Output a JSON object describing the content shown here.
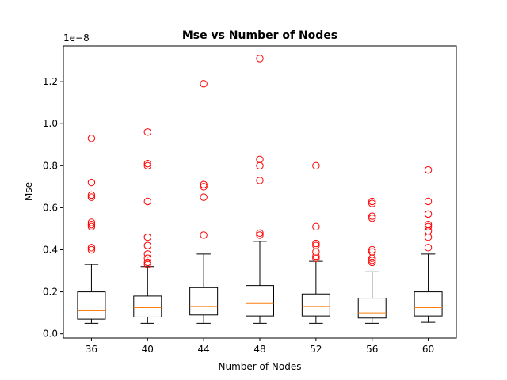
{
  "chart_data": {
    "type": "box",
    "title": "Mse vs Number of Nodes",
    "xlabel": "Number of Nodes",
    "ylabel": "Mse",
    "y_scale_label": "1e−8",
    "ylim": [
      -0.02,
      1.37
    ],
    "yticks": [
      0.0,
      0.2,
      0.4,
      0.6,
      0.8,
      1.0,
      1.2
    ],
    "ytick_labels": [
      "0.0",
      "0.2",
      "0.4",
      "0.6",
      "0.8",
      "1.0",
      "1.2"
    ],
    "grid": false,
    "colors": {
      "box": "#000000",
      "median": "#ff7f0e",
      "outlier": "#ff0000"
    },
    "categories": [
      "36",
      "40",
      "44",
      "48",
      "52",
      "56",
      "60"
    ],
    "boxes": [
      {
        "label": "36",
        "whisker_low": 0.05,
        "q1": 0.07,
        "median": 0.11,
        "q3": 0.2,
        "whisker_high": 0.33,
        "outliers": [
          0.93,
          0.72,
          0.66,
          0.65,
          0.53,
          0.52,
          0.51,
          0.41,
          0.4
        ]
      },
      {
        "label": "40",
        "whisker_low": 0.05,
        "q1": 0.08,
        "median": 0.125,
        "q3": 0.18,
        "whisker_high": 0.32,
        "outliers": [
          0.96,
          0.81,
          0.8,
          0.63,
          0.46,
          0.42,
          0.38,
          0.36,
          0.34,
          0.33
        ]
      },
      {
        "label": "44",
        "whisker_low": 0.05,
        "q1": 0.09,
        "median": 0.13,
        "q3": 0.22,
        "whisker_high": 0.38,
        "outliers": [
          1.19,
          0.71,
          0.7,
          0.65,
          0.47
        ]
      },
      {
        "label": "48",
        "whisker_low": 0.05,
        "q1": 0.085,
        "median": 0.145,
        "q3": 0.23,
        "whisker_high": 0.44,
        "outliers": [
          1.31,
          0.83,
          0.8,
          0.73,
          0.48,
          0.47
        ]
      },
      {
        "label": "52",
        "whisker_low": 0.05,
        "q1": 0.085,
        "median": 0.13,
        "q3": 0.19,
        "whisker_high": 0.345,
        "outliers": [
          0.8,
          0.51,
          0.43,
          0.42,
          0.39,
          0.37,
          0.36
        ]
      },
      {
        "label": "56",
        "whisker_low": 0.05,
        "q1": 0.075,
        "median": 0.1,
        "q3": 0.17,
        "whisker_high": 0.295,
        "outliers": [
          0.63,
          0.62,
          0.56,
          0.55,
          0.4,
          0.39,
          0.36,
          0.35,
          0.34
        ]
      },
      {
        "label": "60",
        "whisker_low": 0.055,
        "q1": 0.085,
        "median": 0.125,
        "q3": 0.2,
        "whisker_high": 0.38,
        "outliers": [
          0.78,
          0.63,
          0.57,
          0.52,
          0.51,
          0.49,
          0.46,
          0.41
        ]
      }
    ]
  }
}
